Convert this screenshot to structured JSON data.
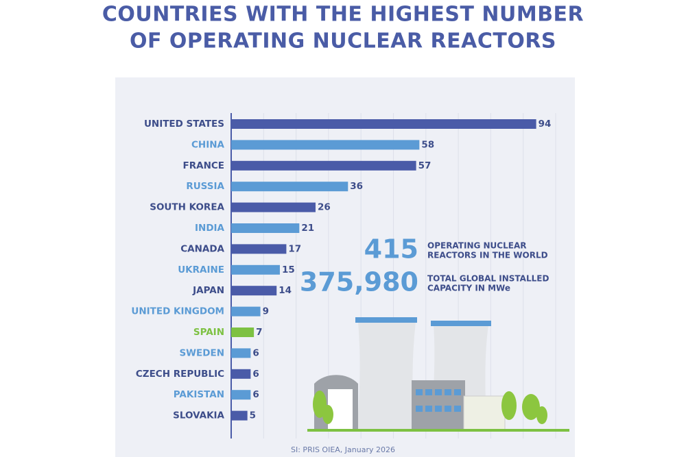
{
  "chart_data": {
    "type": "hbar",
    "title": [
      "COUNTRIES WITH THE HIGHEST NUMBER",
      "OF OPERATING NUCLEAR REACTORS"
    ],
    "categories": [
      "UNITED STATES",
      "CHINA",
      "FRANCE",
      "RUSSIA",
      "SOUTH KOREA",
      "INDIA",
      "CANADA",
      "UKRAINE",
      "JAPAN",
      "UNITED KINGDOM",
      "SPAIN",
      "SWEDEN",
      "CZECH REPUBLIC",
      "PAKISTAN",
      "SLOVAKIA"
    ],
    "values": [
      94,
      58,
      57,
      36,
      26,
      21,
      17,
      15,
      14,
      9,
      7,
      6,
      6,
      6,
      5
    ],
    "colors": [
      "#4a5ba8",
      "#5b9bd5",
      "#4a5ba8",
      "#5b9bd5",
      "#4a5ba8",
      "#5b9bd5",
      "#4a5ba8",
      "#5b9bd5",
      "#4a5ba8",
      "#5b9bd5",
      "#7dc142",
      "#5b9bd5",
      "#4a5ba8",
      "#5b9bd5",
      "#4a5ba8"
    ],
    "xlim": [
      0,
      100
    ],
    "xticks": [
      10,
      20,
      30,
      40,
      50,
      60,
      70,
      80,
      90,
      100
    ],
    "grid": true,
    "stats": [
      {
        "number": "415",
        "lines": [
          "OPERATING NUCLEAR",
          "REACTORS IN THE WORLD"
        ]
      },
      {
        "number": "375,980",
        "lines": [
          "TOTAL GLOBAL INSTALLED",
          "CAPACITY IN MWe"
        ]
      }
    ],
    "source": "SI: PRIS OIEA, January 2026"
  }
}
